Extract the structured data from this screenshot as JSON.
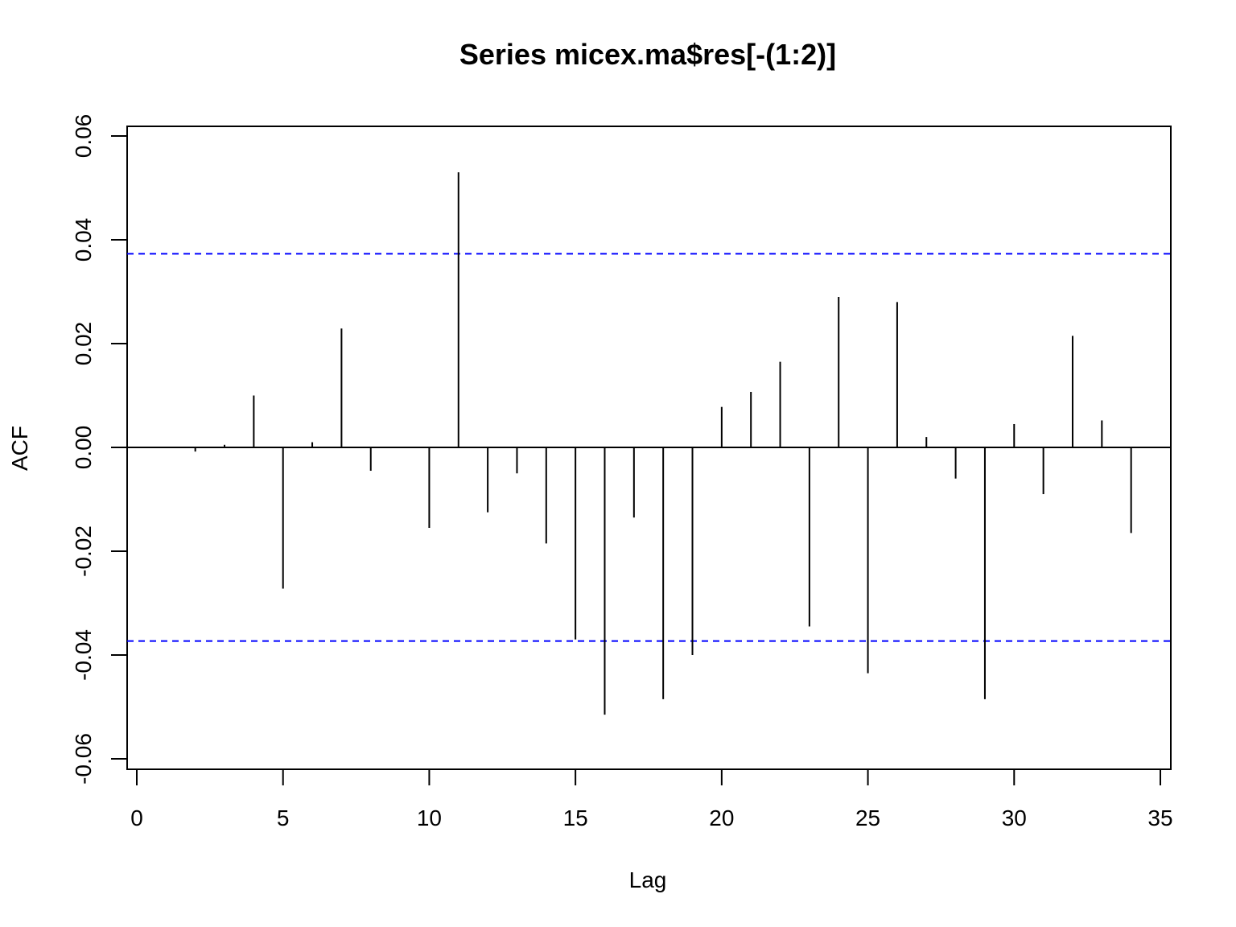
{
  "chart_data": {
    "type": "bar",
    "title": "Series  micex.ma$res[-(1:2)]",
    "xlabel": "Lag",
    "ylabel": "ACF",
    "xlim": [
      0,
      35
    ],
    "ylim": [
      -0.06,
      0.06
    ],
    "x_ticks": [
      0,
      5,
      10,
      15,
      20,
      25,
      30,
      35
    ],
    "y_ticks": [
      -0.06,
      -0.04,
      -0.02,
      0.0,
      0.02,
      0.04,
      0.06
    ],
    "x_tick_labels": [
      "0",
      "5",
      "10",
      "15",
      "20",
      "25",
      "30",
      "35"
    ],
    "y_tick_labels": [
      "-0.06",
      "-0.04",
      "-0.02",
      "0.00",
      "0.02",
      "0.04",
      "0.06"
    ],
    "lags": [
      0,
      1,
      2,
      3,
      4,
      5,
      6,
      7,
      8,
      9,
      10,
      11,
      12,
      13,
      14,
      15,
      16,
      17,
      18,
      19,
      20,
      21,
      22,
      23,
      24,
      25,
      26,
      27,
      28,
      29,
      30,
      31,
      32,
      33,
      34
    ],
    "acf": [
      0.0,
      0.0,
      -0.0008,
      0.0005,
      0.01,
      -0.0272,
      0.001,
      0.0229,
      -0.0045,
      0.0,
      -0.0155,
      0.053,
      -0.0125,
      -0.005,
      -0.0185,
      -0.037,
      -0.0515,
      -0.0135,
      -0.0485,
      -0.04,
      0.0078,
      0.0107,
      0.0165,
      -0.0345,
      0.029,
      -0.0435,
      0.028,
      0.002,
      -0.006,
      -0.0485,
      0.0045,
      -0.009,
      0.0215,
      0.0052,
      -0.0165
    ],
    "confidence_band": [
      -0.0373,
      0.0373
    ],
    "colors": {
      "bars": "#000000",
      "confidence_band": "#0000ff",
      "zero_line": "#000000"
    },
    "grid": false,
    "legend": "none"
  }
}
